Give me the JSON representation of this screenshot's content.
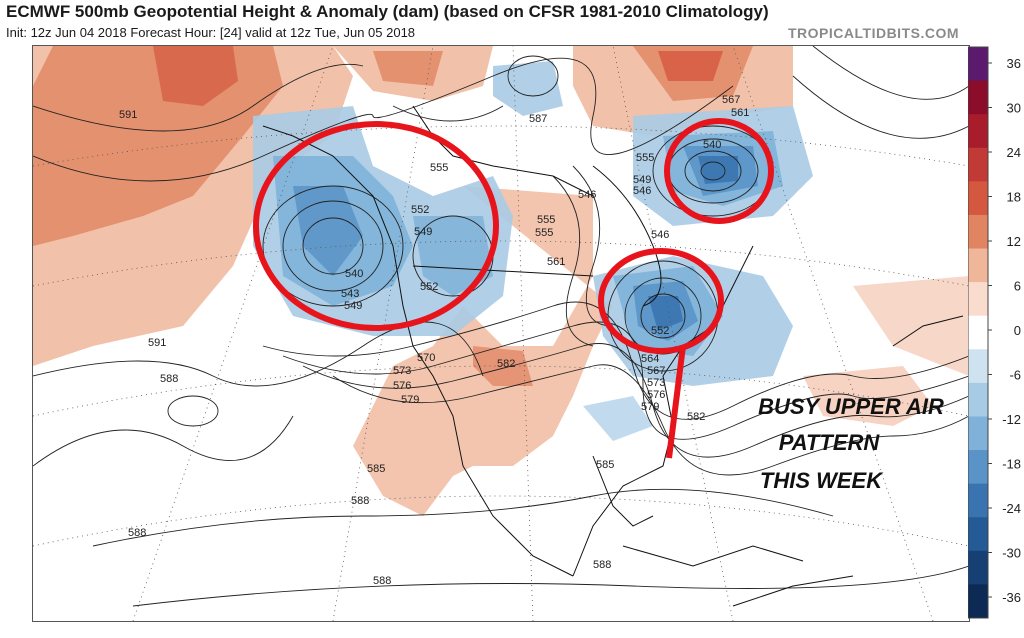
{
  "header": {
    "title": "ECMWF 500mb Geopotential Height & Anomaly (dam) (based on CFSR 1981-2010 Climatology)",
    "subtitle": "Init: 12z Jun 04 2018   Forecast Hour: [24]   valid at 12z Tue, Jun 05 2018",
    "brand": "TROPICALTIDBITS.COM"
  },
  "colorbar": {
    "ticks": [
      "36",
      "30",
      "24",
      "18",
      "12",
      "6",
      "0",
      "-6",
      "-12",
      "-18",
      "-24",
      "-30",
      "-36"
    ],
    "colors": [
      "#5b1a6e",
      "#8b0d2a",
      "#a81c2c",
      "#c23a35",
      "#d4583f",
      "#e08461",
      "#f0b69a",
      "#fadccf",
      "#ffffff",
      "#cfe2f0",
      "#a8cbe5",
      "#80b1d8",
      "#5a93c7",
      "#3a74b0",
      "#245a95",
      "#163f74",
      "#0d2a55"
    ]
  },
  "annotation": {
    "line1": "BUSY UPPER AIR",
    "line2": "PATTERN",
    "line3": "THIS WEEK",
    "color": "#111111"
  },
  "map": {
    "circle_color": "#e8141c",
    "contour_labels": [
      "591",
      "591",
      "588",
      "588",
      "588",
      "588",
      "588",
      "585",
      "585",
      "555",
      "552",
      "549",
      "540",
      "543",
      "549",
      "552",
      "555",
      "555",
      "561",
      "567",
      "561",
      "555",
      "549",
      "546",
      "540",
      "546",
      "552",
      "564",
      "567",
      "573",
      "576",
      "579",
      "582",
      "570",
      "573",
      "576",
      "579",
      "582",
      "587",
      "546"
    ]
  }
}
